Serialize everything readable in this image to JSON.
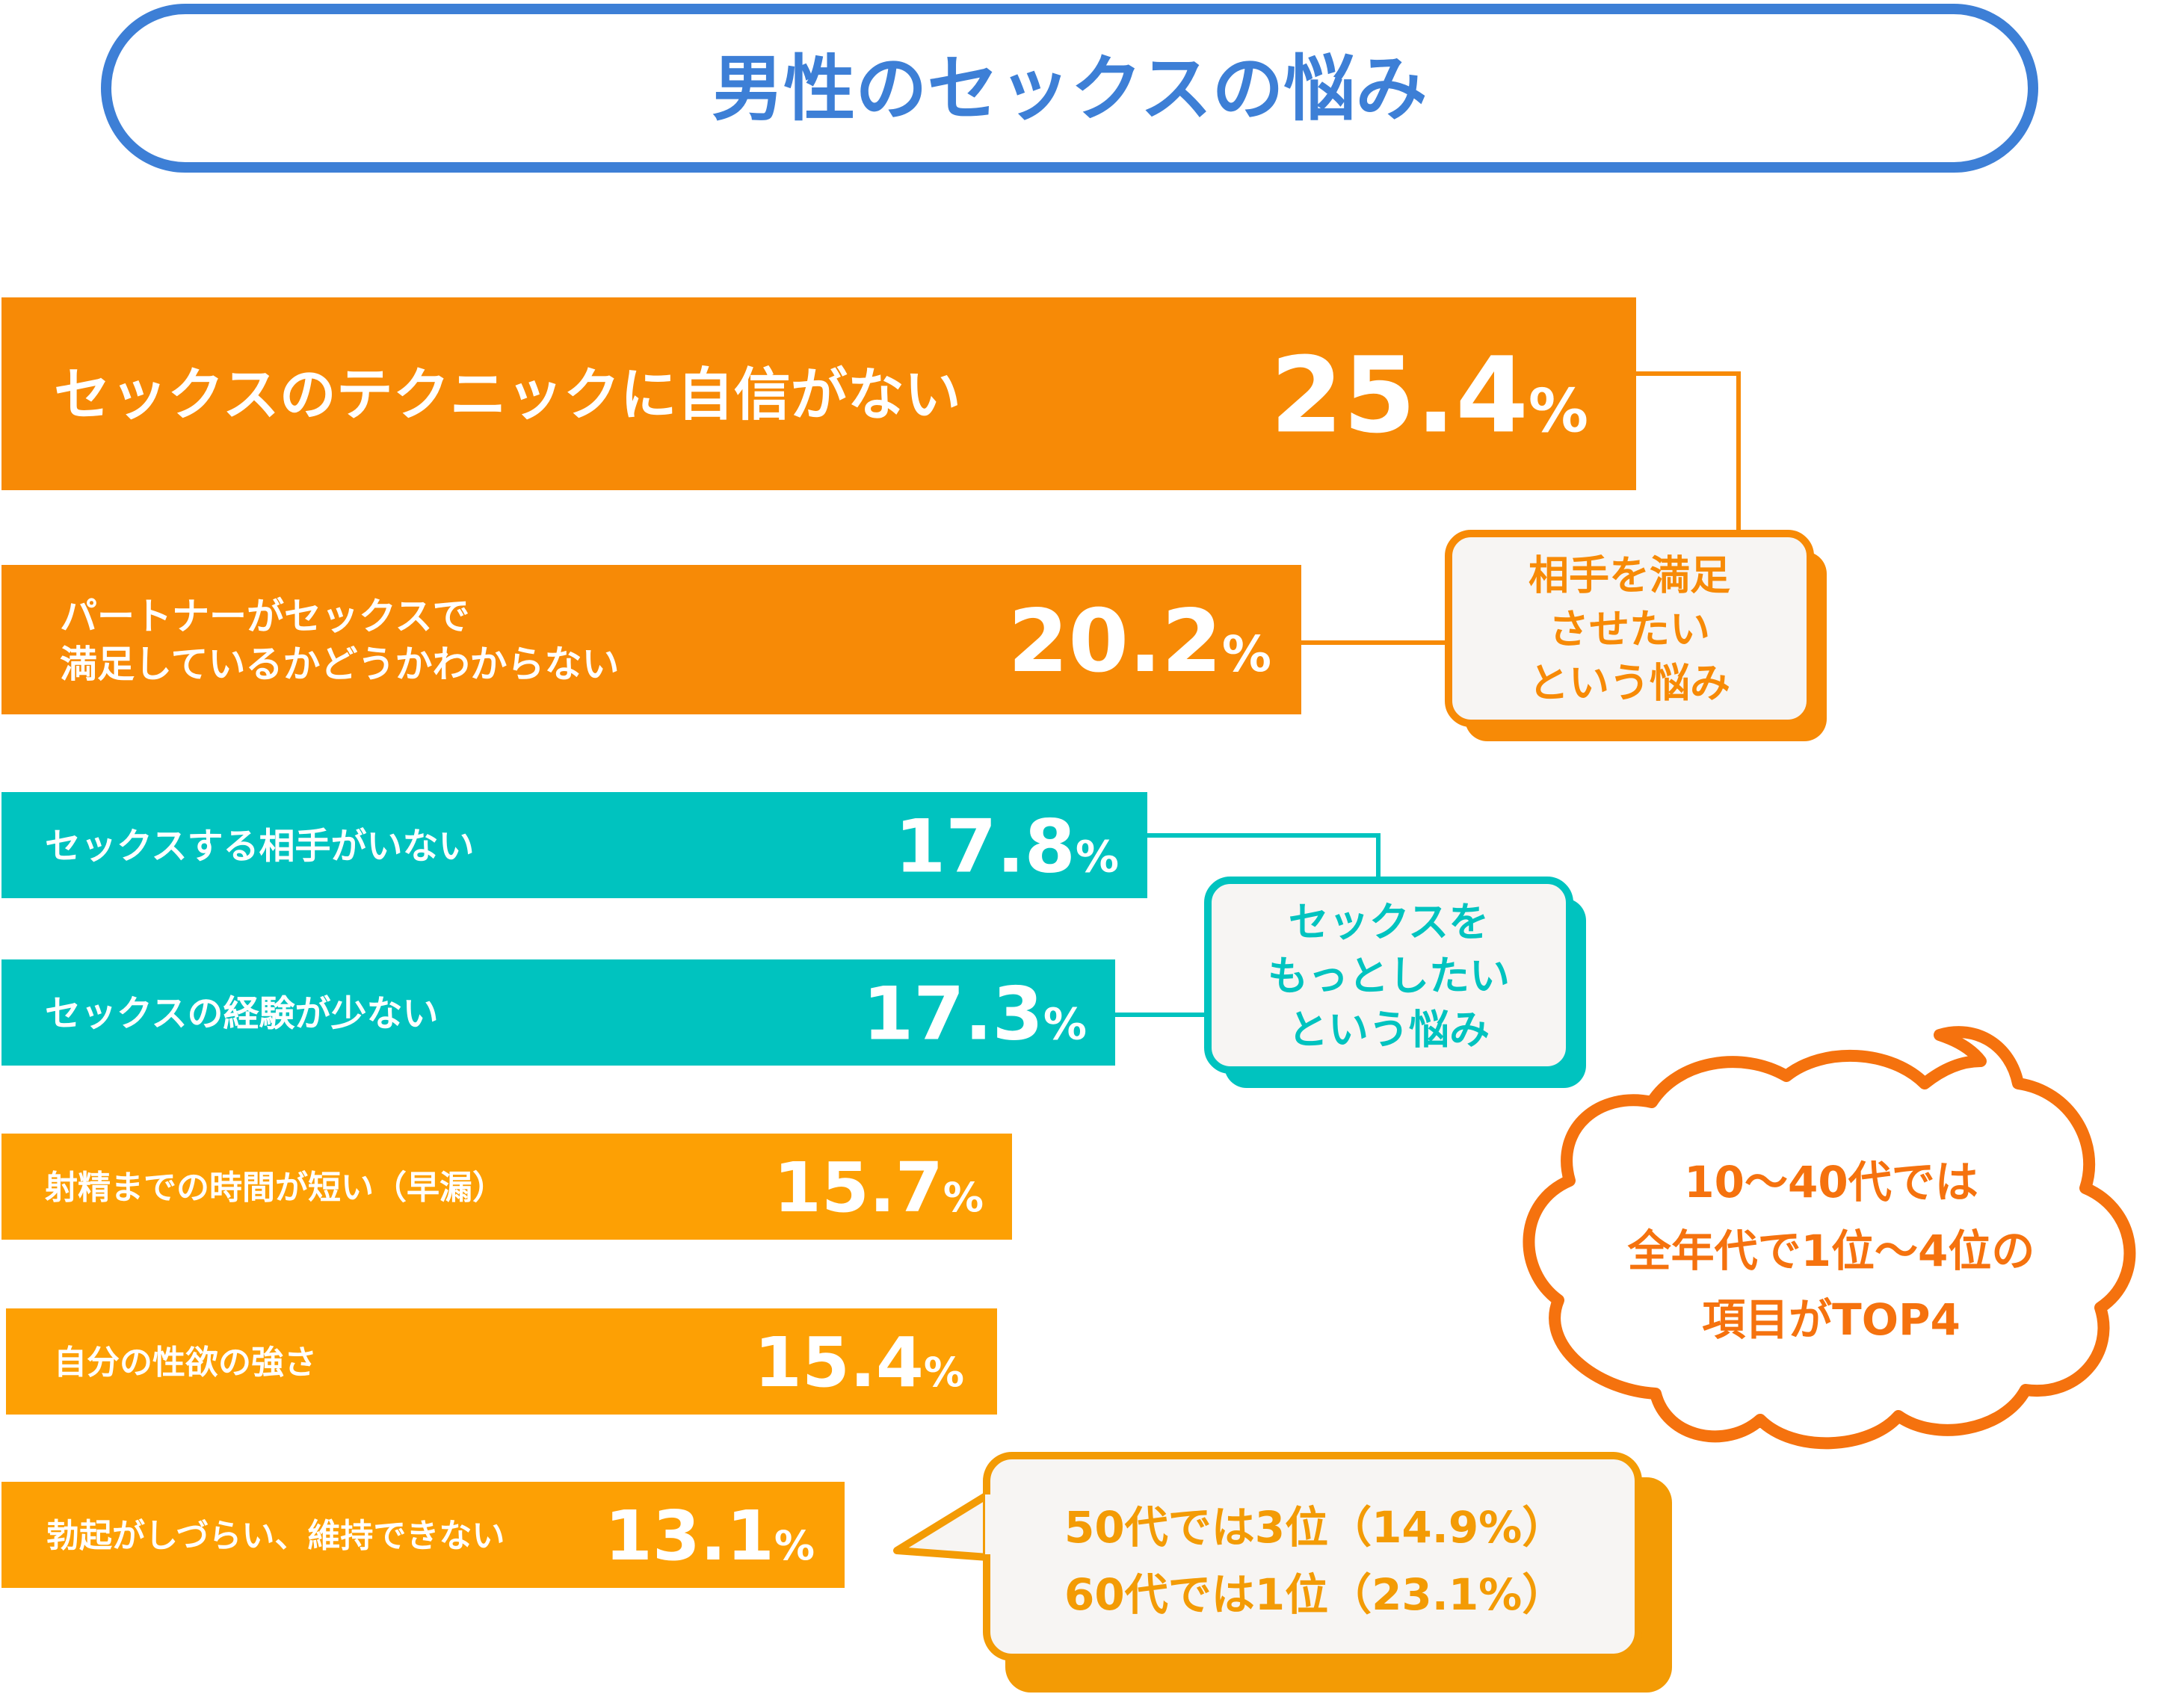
{
  "chart_data": {
    "type": "bar",
    "title": "男性のセックスの悩み",
    "unit": "%",
    "categories": [
      [
        "セックスのテクニックに自信がない"
      ],
      [
        "パートナーがセックスで",
        "満足しているかどうかわからない"
      ],
      [
        "セックスする相手がいない"
      ],
      [
        "セックスの経験が少ない"
      ],
      [
        "射精までの時間が短い（早漏）"
      ],
      [
        "自分の性欲の強さ"
      ],
      [
        "勃起がしづらい、維持できない"
      ]
    ],
    "values": [
      25.4,
      20.2,
      17.8,
      17.3,
      15.7,
      15.4,
      13.1
    ],
    "value_labels": [
      "25.4",
      "20.2",
      "17.8",
      "17.3",
      "15.7",
      "15.4",
      "13.1"
    ],
    "bar_colors": [
      "#F78A06",
      "#F78A06",
      "#00C3BF",
      "#00C3BF",
      "#FDA004",
      "#FDA004",
      "#FDA004"
    ],
    "annotations": [
      {
        "lines": [
          "相手を満足",
          "させたい",
          "という悩み"
        ],
        "color": "#F78A06"
      },
      {
        "lines": [
          "セックスを",
          "もっとしたい",
          "という悩み"
        ],
        "color": "#00C3BF"
      },
      {
        "lines": [
          "10〜40代では",
          "全年代で1位〜4位の",
          "項目がTOP4"
        ],
        "color": "#F5720E"
      },
      {
        "lines": [
          "50代では3位（14.9%）",
          "60代では1位（23.1%）"
        ],
        "color": "#F39B05"
      }
    ],
    "title_color": "#3D7FD6"
  }
}
